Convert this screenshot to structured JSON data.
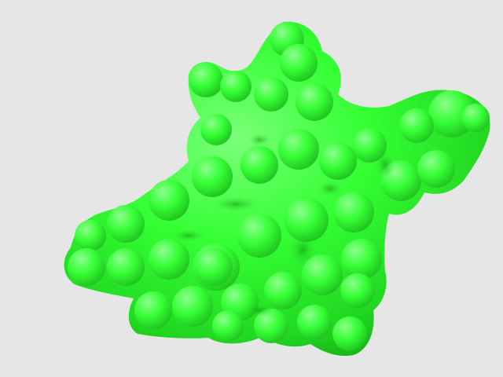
{
  "scene": {
    "background_color": "#e6e6e6",
    "subject": "molecular-surface",
    "surface_color": "#33ff33",
    "highlight_color": "#8cff8c",
    "shadow_color": "#14b814"
  }
}
